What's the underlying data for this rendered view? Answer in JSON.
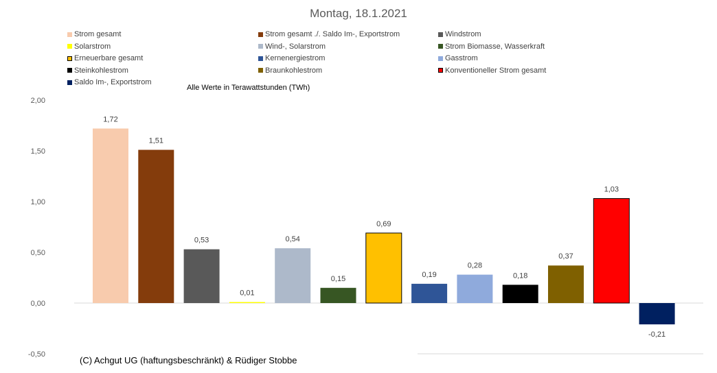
{
  "chart_data": {
    "type": "bar",
    "title": "Montag, 18.1.2021",
    "note": "Alle Werte in Terawattstunden (TWh)",
    "copyright": "(C) Achgut UG (haftungsbeschränkt) & Rüdiger Stobbe",
    "ylim": [
      -0.5,
      2.0
    ],
    "yticks": [
      "2,00",
      "1,50",
      "1,00",
      "0,50",
      "0,00",
      "-0,50"
    ],
    "ytick_values": [
      2.0,
      1.5,
      1.0,
      0.5,
      0.0,
      -0.5
    ],
    "grid": false,
    "legend_position": "top",
    "series": [
      {
        "name": "Strom gesamt",
        "value": 1.72,
        "label": "1,72",
        "color": "#F8CBAD"
      },
      {
        "name": "Strom gesamt ./. Saldo Im-, Exportstrom",
        "value": 1.51,
        "label": "1,51",
        "color": "#843C0C"
      },
      {
        "name": "Windstrom",
        "value": 0.53,
        "label": "0,53",
        "color": "#595959"
      },
      {
        "name": "Solarstrom",
        "value": 0.01,
        "label": "0,01",
        "color": "#FFFF00"
      },
      {
        "name": "Wind-, Solarstrom",
        "value": 0.54,
        "label": "0,54",
        "color": "#ADB9CA"
      },
      {
        "name": "Strom Biomasse, Wasserkraft",
        "value": 0.15,
        "label": "0,15",
        "color": "#375623"
      },
      {
        "name": "Erneuerbare gesamt",
        "value": 0.69,
        "label": "0,69",
        "color": "#FFC000",
        "outline": true
      },
      {
        "name": "Kernenergiestrom",
        "value": 0.19,
        "label": "0,19",
        "color": "#2F5597"
      },
      {
        "name": "Gasstrom",
        "value": 0.28,
        "label": "0,28",
        "color": "#8FAADC"
      },
      {
        "name": "Steinkohlestrom",
        "value": 0.18,
        "label": "0,18",
        "color": "#000000"
      },
      {
        "name": "Braunkohlestrom",
        "value": 0.37,
        "label": "0,37",
        "color": "#7F6000"
      },
      {
        "name": "Konventioneller Strom gesamt",
        "value": 1.03,
        "label": "1,03",
        "color": "#FF0000",
        "outline": true
      },
      {
        "name": "Saldo Im-, Exportstrom",
        "value": -0.21,
        "label": "-0,21",
        "color": "#002060"
      }
    ]
  }
}
